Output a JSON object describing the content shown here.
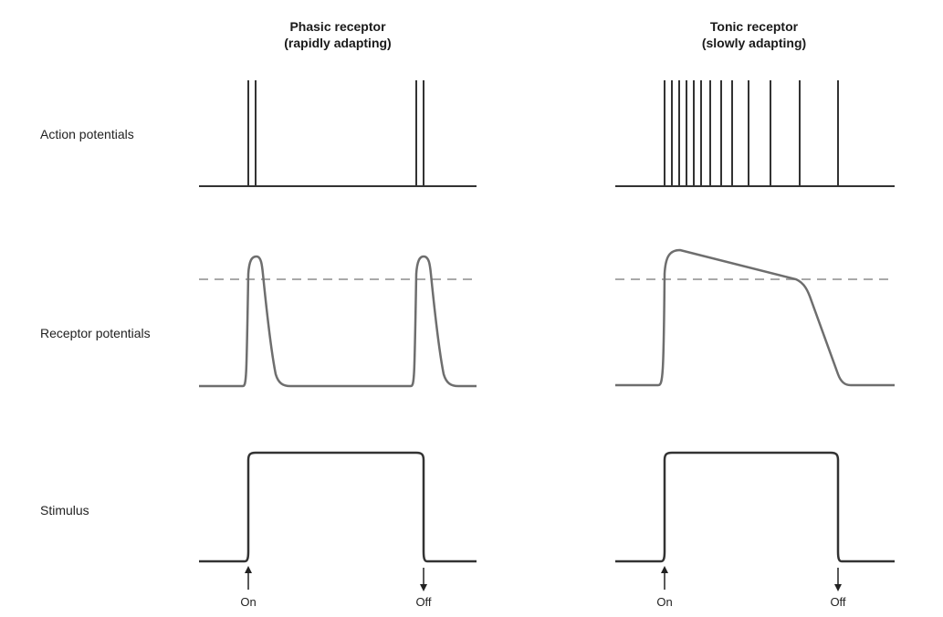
{
  "columns": {
    "phasic": {
      "title": "Phasic receptor",
      "subtitle": "(rapidly adapting)"
    },
    "tonic": {
      "title": "Tonic receptor",
      "subtitle": "(slowly adapting)"
    }
  },
  "rows": {
    "action_potentials": "Action potentials",
    "receptor_potentials": "Receptor potentials",
    "stimulus": "Stimulus"
  },
  "markers": {
    "on": "On",
    "off": "Off"
  },
  "colors": {
    "trace": "#333333",
    "wave": "#6e6e6e",
    "threshold": "#a9a9a9"
  }
}
